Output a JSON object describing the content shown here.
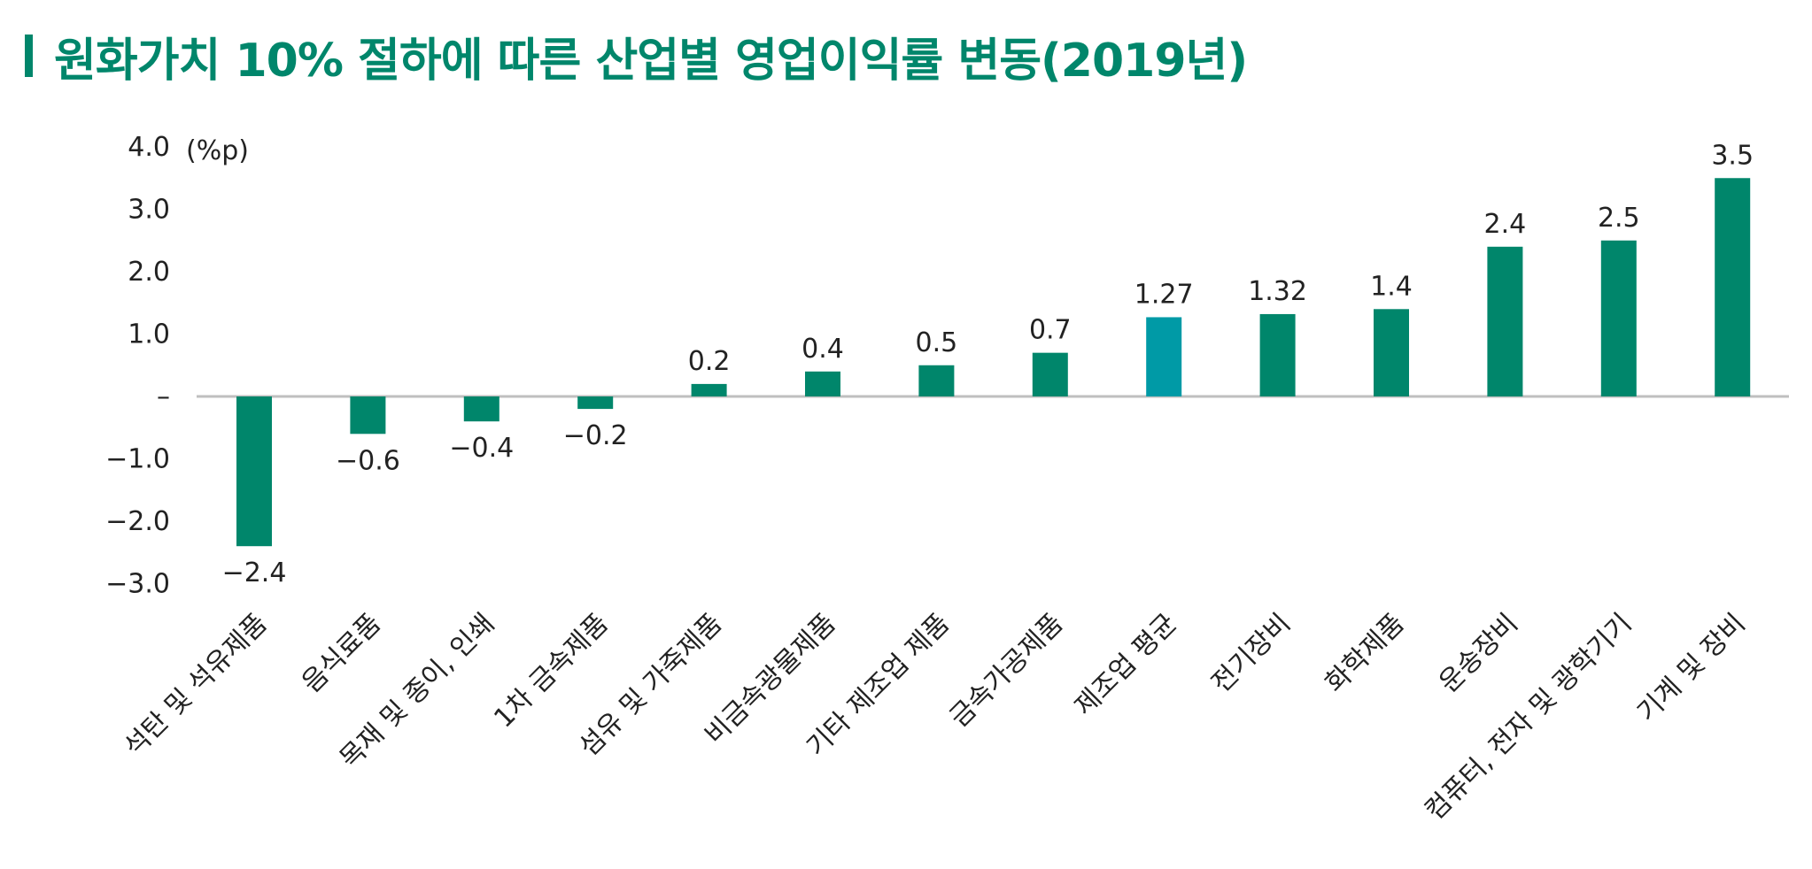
{
  "title": "원화가치 10% 절하에 따른 산업별 영업이익률 변동(2019년)",
  "colors": {
    "accent": "#00866b",
    "highlight": "#009aa6",
    "axis": "#bfbfbf",
    "text": "#222222"
  },
  "chart_data": {
    "type": "bar",
    "unit": "(%p)",
    "ylim": [
      -3.0,
      4.0
    ],
    "yticks": [
      {
        "value": 4.0,
        "label": "4.0"
      },
      {
        "value": 3.0,
        "label": "3.0"
      },
      {
        "value": 2.0,
        "label": "2.0"
      },
      {
        "value": 1.0,
        "label": "1.0"
      },
      {
        "value": 0,
        "label": "–"
      },
      {
        "value": -1.0,
        "label": "−1.0"
      },
      {
        "value": -2.0,
        "label": "−2.0"
      },
      {
        "value": -3.0,
        "label": "−3.0"
      }
    ],
    "categories": [
      "석탄 및 석유제품",
      "음식료품",
      "목재 및 종이, 인쇄",
      "1차 금속제품",
      "섬유 및 가죽제품",
      "비금속광물제품",
      "기타 제조업 제품",
      "금속가공제품",
      "제조업 평균",
      "전기장비",
      "화학제품",
      "운송장비",
      "컴퓨터, 전자 및 광학기기",
      "기계 및 장비"
    ],
    "values": [
      -2.4,
      -0.6,
      -0.4,
      -0.2,
      0.2,
      0.4,
      0.5,
      0.7,
      1.27,
      1.32,
      1.4,
      2.4,
      2.5,
      3.5
    ],
    "value_labels": [
      "−2.4",
      "−0.6",
      "−0.4",
      "−0.2",
      "0.2",
      "0.4",
      "0.5",
      "0.7",
      "1.27",
      "1.32",
      "1.4",
      "2.4",
      "2.5",
      "3.5"
    ],
    "highlight_index": 8,
    "grid": false
  }
}
